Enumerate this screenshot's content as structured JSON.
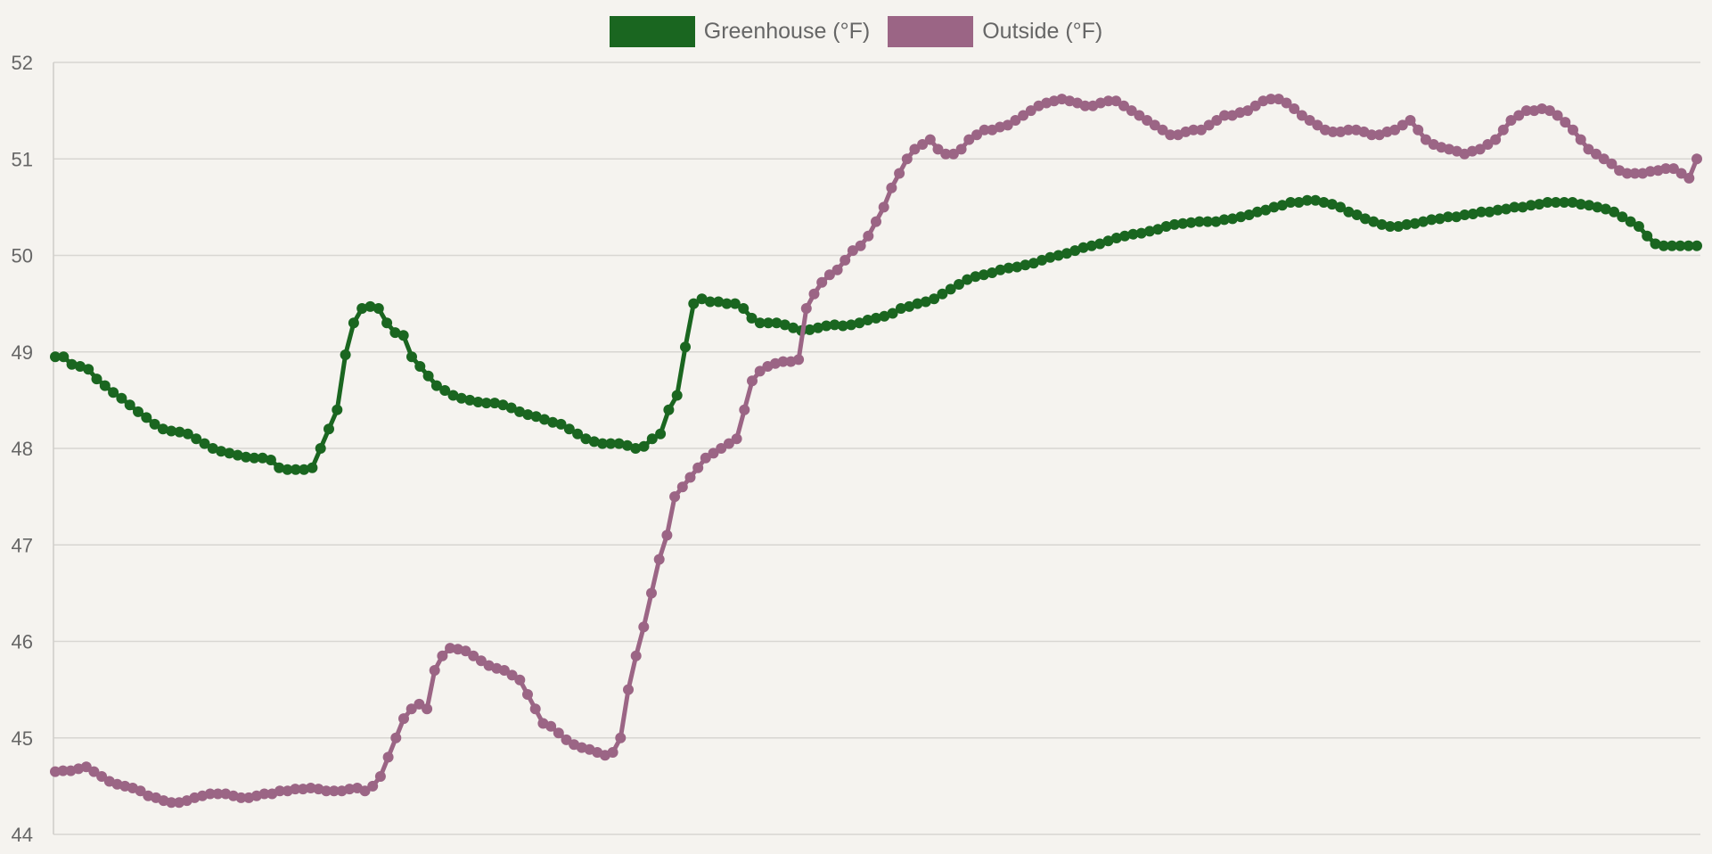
{
  "chart_data": {
    "type": "line",
    "title": "",
    "xlabel": "",
    "ylabel": "",
    "ylim": [
      44,
      52
    ],
    "yticks": [
      "52",
      "51",
      "50",
      "49",
      "48",
      "47",
      "46",
      "45",
      "44"
    ],
    "grid": true,
    "legend_position": "top",
    "series": [
      {
        "name": "Greenhouse (°F)",
        "color": "#1a6620",
        "values": [
          48.95,
          48.95,
          48.87,
          48.85,
          48.82,
          48.72,
          48.65,
          48.58,
          48.52,
          48.45,
          48.38,
          48.32,
          48.25,
          48.2,
          48.18,
          48.17,
          48.15,
          48.1,
          48.05,
          48.0,
          47.97,
          47.95,
          47.93,
          47.91,
          47.9,
          47.9,
          47.88,
          47.8,
          47.78,
          47.78,
          47.78,
          47.8,
          48.0,
          48.2,
          48.4,
          48.97,
          49.3,
          49.45,
          49.47,
          49.45,
          49.3,
          49.2,
          49.17,
          48.95,
          48.85,
          48.75,
          48.65,
          48.6,
          48.55,
          48.52,
          48.5,
          48.48,
          48.47,
          48.47,
          48.45,
          48.42,
          48.38,
          48.35,
          48.33,
          48.3,
          48.27,
          48.25,
          48.2,
          48.15,
          48.1,
          48.07,
          48.05,
          48.05,
          48.05,
          48.03,
          48.0,
          48.02,
          48.1,
          48.15,
          48.4,
          48.55,
          49.05,
          49.5,
          49.55,
          49.52,
          49.52,
          49.5,
          49.5,
          49.45,
          49.35,
          49.3,
          49.3,
          49.3,
          49.28,
          49.25,
          49.22,
          49.23,
          49.25,
          49.27,
          49.28,
          49.27,
          49.28,
          49.3,
          49.33,
          49.35,
          49.37,
          49.4,
          49.45,
          49.47,
          49.5,
          49.52,
          49.55,
          49.6,
          49.65,
          49.7,
          49.75,
          49.78,
          49.8,
          49.82,
          49.85,
          49.87,
          49.88,
          49.9,
          49.92,
          49.95,
          49.98,
          50.0,
          50.02,
          50.05,
          50.08,
          50.1,
          50.12,
          50.15,
          50.18,
          50.2,
          50.22,
          50.23,
          50.25,
          50.27,
          50.3,
          50.32,
          50.33,
          50.34,
          50.35,
          50.35,
          50.35,
          50.37,
          50.38,
          50.4,
          50.42,
          50.45,
          50.47,
          50.5,
          50.52,
          50.55,
          50.55,
          50.57,
          50.57,
          50.55,
          50.53,
          50.5,
          50.45,
          50.42,
          50.38,
          50.35,
          50.32,
          50.3,
          50.3,
          50.32,
          50.33,
          50.35,
          50.37,
          50.38,
          50.4,
          50.4,
          50.42,
          50.43,
          50.45,
          50.45,
          50.47,
          50.48,
          50.5,
          50.5,
          50.52,
          50.53,
          50.55,
          50.55,
          50.55,
          50.55,
          50.53,
          50.52,
          50.5,
          50.48,
          50.45,
          50.4,
          50.35,
          50.3,
          50.2,
          50.12,
          50.1,
          50.1,
          50.1,
          50.1,
          50.1
        ]
      },
      {
        "name": "Outside (°F)",
        "color": "#9b6585",
        "values": [
          44.65,
          44.66,
          44.66,
          44.68,
          44.7,
          44.65,
          44.6,
          44.55,
          44.52,
          44.5,
          44.48,
          44.45,
          44.4,
          44.38,
          44.35,
          44.33,
          44.33,
          44.35,
          44.38,
          44.4,
          44.42,
          44.42,
          44.42,
          44.4,
          44.38,
          44.38,
          44.4,
          44.42,
          44.42,
          44.45,
          44.45,
          44.47,
          44.47,
          44.48,
          44.47,
          44.45,
          44.45,
          44.45,
          44.47,
          44.48,
          44.45,
          44.5,
          44.6,
          44.8,
          45.0,
          45.2,
          45.3,
          45.35,
          45.3,
          45.7,
          45.85,
          45.93,
          45.92,
          45.9,
          45.85,
          45.8,
          45.75,
          45.72,
          45.7,
          45.65,
          45.6,
          45.45,
          45.3,
          45.15,
          45.12,
          45.05,
          44.98,
          44.93,
          44.9,
          44.88,
          44.85,
          44.82,
          44.85,
          45.0,
          45.5,
          45.85,
          46.15,
          46.5,
          46.85,
          47.1,
          47.5,
          47.6,
          47.7,
          47.8,
          47.9,
          47.95,
          48.0,
          48.05,
          48.1,
          48.4,
          48.7,
          48.8,
          48.85,
          48.88,
          48.9,
          48.9,
          48.92,
          49.45,
          49.6,
          49.72,
          49.8,
          49.85,
          49.95,
          50.05,
          50.1,
          50.2,
          50.35,
          50.5,
          50.7,
          50.85,
          51.0,
          51.1,
          51.15,
          51.2,
          51.1,
          51.05,
          51.05,
          51.1,
          51.2,
          51.25,
          51.3,
          51.3,
          51.33,
          51.35,
          51.4,
          51.45,
          51.5,
          51.55,
          51.58,
          51.6,
          51.62,
          51.6,
          51.58,
          51.55,
          51.55,
          51.58,
          51.6,
          51.6,
          51.55,
          51.5,
          51.45,
          51.4,
          51.35,
          51.3,
          51.25,
          51.25,
          51.28,
          51.3,
          51.3,
          51.35,
          51.4,
          51.45,
          51.45,
          51.48,
          51.5,
          51.55,
          51.6,
          51.62,
          51.62,
          51.58,
          51.52,
          51.45,
          51.4,
          51.35,
          51.3,
          51.28,
          51.28,
          51.3,
          51.3,
          51.28,
          51.25,
          51.25,
          51.28,
          51.3,
          51.35,
          51.4,
          51.3,
          51.2,
          51.15,
          51.12,
          51.1,
          51.08,
          51.05,
          51.08,
          51.1,
          51.15,
          51.2,
          51.3,
          51.4,
          51.45,
          51.5,
          51.5,
          51.52,
          51.5,
          51.45,
          51.38,
          51.3,
          51.2,
          51.1,
          51.05,
          51.0,
          50.95,
          50.88,
          50.85,
          50.85,
          50.85,
          50.87,
          50.88,
          50.9,
          50.9,
          50.85,
          50.8,
          51.0
        ]
      }
    ]
  }
}
